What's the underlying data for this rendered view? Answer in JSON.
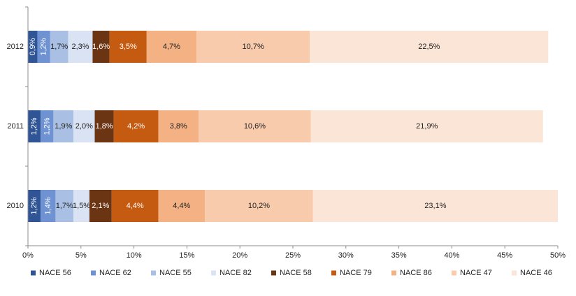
{
  "chart_data": {
    "type": "bar",
    "orientation": "horizontal",
    "stacked": true,
    "categories": [
      "2012",
      "2011",
      "2010"
    ],
    "series": [
      {
        "name": "NACE 56",
        "color": "#2f5597",
        "values": [
          0.9,
          1.2,
          1.2
        ],
        "labels": [
          "0,9%",
          "1,2%",
          "1,2%"
        ]
      },
      {
        "name": "NACE 62",
        "color": "#6f93d2",
        "values": [
          1.2,
          1.2,
          1.4
        ],
        "labels": [
          "1,2%",
          "1,2%",
          "1,4%"
        ]
      },
      {
        "name": "NACE 55",
        "color": "#a9bfe3",
        "values": [
          1.7,
          1.9,
          1.7
        ],
        "labels": [
          "1,7%",
          "1,9%",
          "1,7%"
        ]
      },
      {
        "name": "NACE 82",
        "color": "#dae3f3",
        "values": [
          2.3,
          2.0,
          1.5
        ],
        "labels": [
          "2,3%",
          "2,0%",
          "1,5%"
        ]
      },
      {
        "name": "NACE 58",
        "color": "#6b3413",
        "values": [
          1.6,
          1.8,
          2.1
        ],
        "labels": [
          "1,6%",
          "1,8%",
          "2,1%"
        ]
      },
      {
        "name": "NACE 79",
        "color": "#c55a11",
        "values": [
          3.5,
          4.2,
          4.4
        ],
        "labels": [
          "3,5%",
          "4,2%",
          "4,4%"
        ]
      },
      {
        "name": "NACE 86",
        "color": "#f4b183",
        "values": [
          4.7,
          3.8,
          4.4
        ],
        "labels": [
          "4,7%",
          "3,8%",
          "4,4%"
        ]
      },
      {
        "name": "NACE 47",
        "color": "#f8cbad",
        "values": [
          10.7,
          10.6,
          10.2
        ],
        "labels": [
          "10,7%",
          "10,6%",
          "10,2%"
        ]
      },
      {
        "name": "NACE 46",
        "color": "#fbe5d6",
        "values": [
          22.5,
          21.9,
          23.1
        ],
        "labels": [
          "22,5%",
          "21,9%",
          "23,1%"
        ]
      }
    ],
    "x_ticks": [
      "0%",
      "5%",
      "10%",
      "15%",
      "20%",
      "25%",
      "30%",
      "35%",
      "40%",
      "45%",
      "50%"
    ],
    "xlim": [
      0,
      50
    ],
    "grid": false,
    "legend_position": "bottom",
    "title": "",
    "xlabel": "",
    "ylabel": ""
  }
}
